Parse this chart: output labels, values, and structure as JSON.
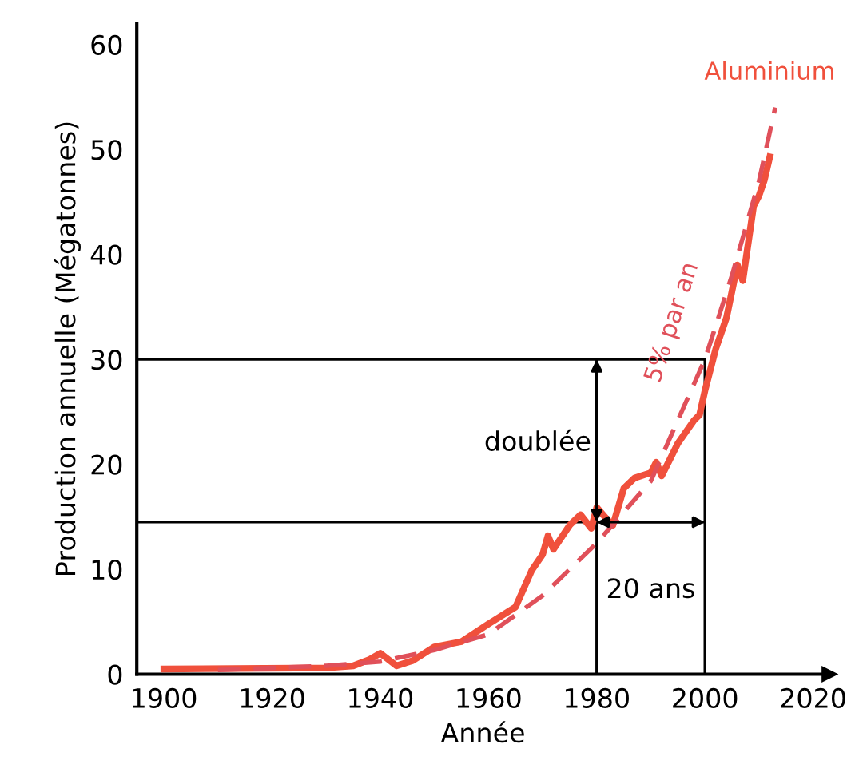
{
  "chart_data": {
    "type": "line",
    "xlabel": "Année",
    "ylabel": "Production annuelle (Mégatonnes)",
    "xlim": [
      1895,
      2023
    ],
    "ylim": [
      0,
      62
    ],
    "xticks": [
      1900,
      1920,
      1940,
      1960,
      1980,
      2000,
      2020
    ],
    "yticks": [
      0,
      10,
      20,
      30,
      40,
      50,
      60
    ],
    "grid": false,
    "series": [
      {
        "name": "Aluminium",
        "color": "#f0503c",
        "line_style": "solid",
        "x": [
          1900,
          1930,
          1935,
          1938,
          1940,
          1943,
          1946,
          1950,
          1955,
          1960,
          1965,
          1968,
          1970,
          1971,
          1972,
          1975,
          1977,
          1979,
          1980,
          1982,
          1983,
          1985,
          1987,
          1990,
          1991,
          1992,
          1995,
          1998,
          1999,
          2000,
          2002,
          2004,
          2006,
          2007,
          2009,
          2010,
          2011,
          2012
        ],
        "values": [
          0.5,
          0.6,
          0.8,
          1.4,
          2.0,
          0.8,
          1.3,
          2.6,
          3.1,
          4.8,
          6.4,
          9.9,
          11.4,
          13.2,
          11.9,
          14.2,
          15.2,
          13.9,
          15.9,
          14.7,
          14.2,
          17.7,
          18.7,
          19.2,
          20.2,
          18.9,
          22.0,
          24.2,
          24.7,
          27.0,
          31.0,
          34.0,
          39.0,
          37.5,
          44.6,
          45.6,
          47.1,
          49.3
        ]
      },
      {
        "name": "5% par an",
        "color": "#e0505a",
        "line_style": "dashed",
        "x": [
          1910,
          1920,
          1930,
          1940,
          1950,
          1960,
          1970,
          1980,
          1990,
          2000,
          2005,
          2010,
          2013
        ],
        "values": [
          0.4,
          0.6,
          0.8,
          1.2,
          2.3,
          3.8,
          7.5,
          12.5,
          18.4,
          30.0,
          38.0,
          47.0,
          54.0
        ]
      }
    ],
    "ref_lines": [
      {
        "axis": "y",
        "value": 30,
        "color": "#000000"
      },
      {
        "axis": "y",
        "value": 14.5,
        "color": "#000000"
      },
      {
        "axis": "x",
        "value": 1980,
        "color": "#000000"
      },
      {
        "axis": "x",
        "value": 2000,
        "color": "#000000"
      }
    ],
    "annotations": [
      {
        "text": "doublée",
        "x": 1980,
        "y": 22
      },
      "20 ans"
    ]
  }
}
